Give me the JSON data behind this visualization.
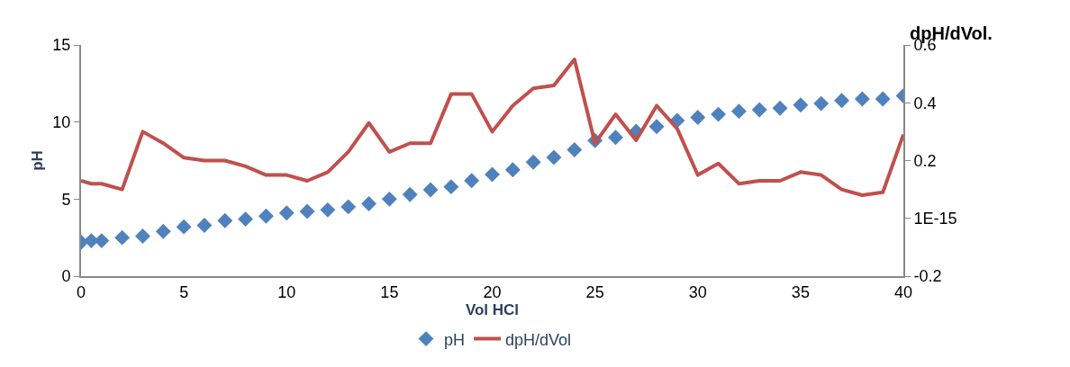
{
  "chart_data": {
    "type": "scatter",
    "xlabel": "Vol HCl",
    "ylabel": "pH",
    "y2label": "dpH/dVol.",
    "x": [
      0,
      0.5,
      1,
      2,
      3,
      4,
      5,
      6,
      7,
      8,
      9,
      10,
      11,
      12,
      13,
      14,
      15,
      16,
      17,
      18,
      19,
      20,
      21,
      22,
      23,
      24,
      25,
      26,
      27,
      28,
      29,
      30,
      31,
      32,
      33,
      34,
      35,
      36,
      37,
      38,
      39,
      40
    ],
    "series": [
      {
        "name": "pH",
        "marker": "diamond",
        "color": "#4f81bd",
        "values": [
          2.2,
          2.3,
          2.3,
          2.5,
          2.6,
          2.9,
          3.2,
          3.3,
          3.6,
          3.7,
          3.9,
          4.1,
          4.2,
          4.3,
          4.5,
          4.7,
          5.0,
          5.3,
          5.6,
          5.8,
          6.2,
          6.6,
          6.9,
          7.4,
          7.7,
          8.2,
          8.8,
          9.0,
          9.4,
          9.7,
          10.1,
          10.3,
          10.5,
          10.7,
          10.8,
          10.9,
          11.1,
          11.2,
          11.4,
          11.5,
          11.5,
          11.7
        ]
      },
      {
        "name": "dpH/dVol",
        "type": "line",
        "axis": "y2",
        "marker": "none",
        "line_style": "solid",
        "color": "#c0504d",
        "values": [
          0.13,
          0.12,
          0.12,
          0.1,
          0.3,
          0.26,
          0.21,
          0.2,
          0.2,
          0.18,
          0.15,
          0.15,
          0.13,
          0.16,
          0.23,
          0.33,
          0.23,
          0.26,
          0.26,
          0.43,
          0.43,
          0.3,
          0.39,
          0.45,
          0.46,
          0.55,
          0.26,
          0.36,
          0.27,
          0.39,
          0.31,
          0.15,
          0.19,
          0.12,
          0.13,
          0.13,
          0.16,
          0.15,
          0.1,
          0.08,
          0.09,
          0.29
        ]
      }
    ],
    "xlim": [
      0,
      40
    ],
    "xticks": [
      0,
      5,
      10,
      15,
      20,
      25,
      30,
      35,
      40
    ],
    "ylim": [
      0,
      15
    ],
    "yticks": [
      0,
      5,
      10,
      15
    ],
    "y2lim": [
      -0.2,
      0.6
    ],
    "y2ticks": [
      -0.2,
      {
        "value": 0,
        "label": "1E-15"
      },
      0.2,
      0.4,
      0.6
    ],
    "legend": "bottom"
  }
}
